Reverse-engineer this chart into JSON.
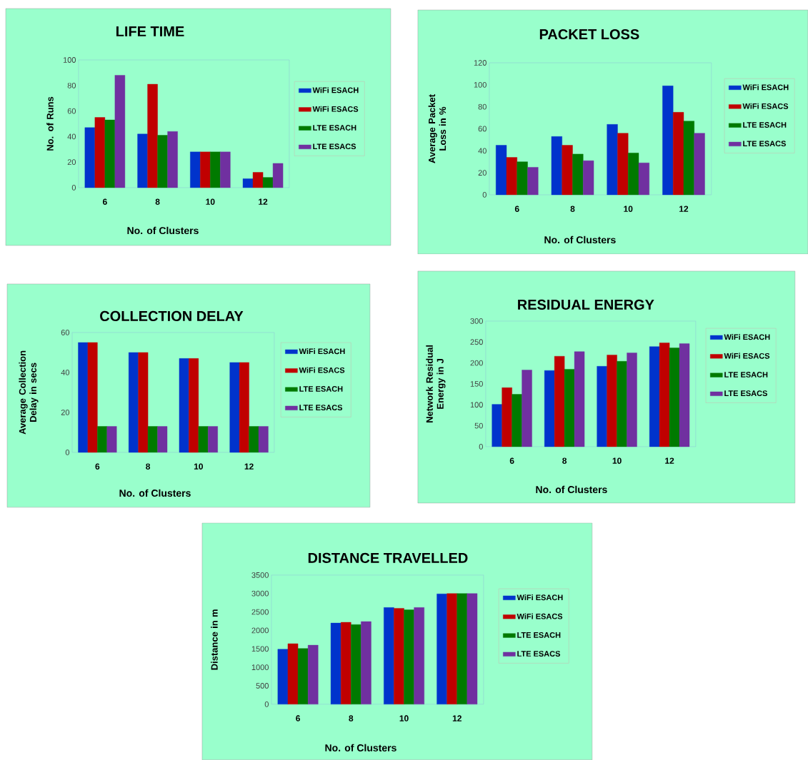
{
  "chart_data": [
    {
      "type": "bar",
      "title": "LIFE TIME",
      "xlabel": "No. of Clusters",
      "ylabel": "No. of Runs",
      "categories": [
        "6",
        "8",
        "10",
        "12"
      ],
      "ylim": [
        0,
        100
      ],
      "yticks": [
        0,
        20,
        40,
        60,
        80,
        100
      ],
      "legend": "right",
      "series": [
        {
          "name": "WiFi ESACH",
          "color": "#0033cc",
          "values": [
            47,
            42,
            28,
            7
          ]
        },
        {
          "name": "WiFi ESACS",
          "color": "#c00000",
          "values": [
            55,
            81,
            28,
            12
          ]
        },
        {
          "name": "LTE ESACH",
          "color": "#007a00",
          "values": [
            53,
            41,
            28,
            8
          ]
        },
        {
          "name": "LTE ESACS",
          "color": "#7030a0",
          "values": [
            88,
            44,
            28,
            19
          ]
        }
      ]
    },
    {
      "type": "bar",
      "title": "PACKET LOSS",
      "xlabel": "No. of Clusters",
      "ylabel": "Average Packet Loss in %",
      "categories": [
        "6",
        "8",
        "10",
        "12"
      ],
      "ylim": [
        0,
        120
      ],
      "yticks": [
        0,
        20,
        40,
        60,
        80,
        100,
        120
      ],
      "legend": "right",
      "series": [
        {
          "name": "WiFi ESACH",
          "color": "#0033cc",
          "values": [
            45,
            53,
            64,
            99
          ]
        },
        {
          "name": "WiFi ESACS",
          "color": "#c00000",
          "values": [
            34,
            45,
            56,
            75
          ]
        },
        {
          "name": "LTE ESACH",
          "color": "#007a00",
          "values": [
            30,
            37,
            38,
            67
          ]
        },
        {
          "name": "LTE ESACS",
          "color": "#7030a0",
          "values": [
            25,
            31,
            29,
            56
          ]
        }
      ]
    },
    {
      "type": "bar",
      "title": "COLLECTION DELAY",
      "xlabel": "No. of Clusters",
      "ylabel": "Average Collection Delay in secs",
      "categories": [
        "6",
        "8",
        "10",
        "12"
      ],
      "ylim": [
        0,
        60
      ],
      "yticks": [
        0,
        20,
        40,
        60
      ],
      "legend": "right",
      "series": [
        {
          "name": "WiFi ESACH",
          "color": "#0033cc",
          "values": [
            55,
            50,
            47,
            45
          ]
        },
        {
          "name": "WiFi ESACS",
          "color": "#c00000",
          "values": [
            55,
            50,
            47,
            45
          ]
        },
        {
          "name": "LTE ESACH",
          "color": "#007a00",
          "values": [
            13,
            13,
            13,
            13
          ]
        },
        {
          "name": "LTE ESACS",
          "color": "#7030a0",
          "values": [
            13,
            13,
            13,
            13
          ]
        }
      ]
    },
    {
      "type": "bar",
      "title": "RESIDUAL ENERGY",
      "xlabel": "No. of Clusters",
      "ylabel": "Network Residual Energy in J",
      "categories": [
        "6",
        "8",
        "10",
        "12"
      ],
      "ylim": [
        0,
        300
      ],
      "yticks": [
        0,
        50,
        100,
        150,
        200,
        250,
        300
      ],
      "legend": "right",
      "series": [
        {
          "name": "WiFi ESACH",
          "color": "#0033cc",
          "values": [
            101,
            182,
            192,
            239
          ]
        },
        {
          "name": "WiFi ESACS",
          "color": "#c00000",
          "values": [
            141,
            216,
            219,
            248
          ]
        },
        {
          "name": "LTE ESACH",
          "color": "#007a00",
          "values": [
            125,
            185,
            204,
            236
          ]
        },
        {
          "name": "LTE ESACS",
          "color": "#7030a0",
          "values": [
            183,
            227,
            224,
            246
          ]
        }
      ]
    },
    {
      "type": "bar",
      "title": "DISTANCE TRAVELLED",
      "xlabel": "No. of Clusters",
      "ylabel": "Distance in m",
      "categories": [
        "6",
        "8",
        "10",
        "12"
      ],
      "ylim": [
        0,
        3500
      ],
      "yticks": [
        0,
        500,
        1000,
        1500,
        2000,
        2500,
        3000,
        3500
      ],
      "legend": "right",
      "series": [
        {
          "name": "WiFi ESACH",
          "color": "#0033cc",
          "values": [
            1490,
            2200,
            2620,
            2990
          ]
        },
        {
          "name": "WiFi ESACS",
          "color": "#c00000",
          "values": [
            1640,
            2220,
            2600,
            3000
          ]
        },
        {
          "name": "LTE ESACH",
          "color": "#007a00",
          "values": [
            1510,
            2160,
            2560,
            3000
          ]
        },
        {
          "name": "LTE ESACS",
          "color": "#7030a0",
          "values": [
            1600,
            2240,
            2620,
            3000
          ]
        }
      ]
    }
  ]
}
